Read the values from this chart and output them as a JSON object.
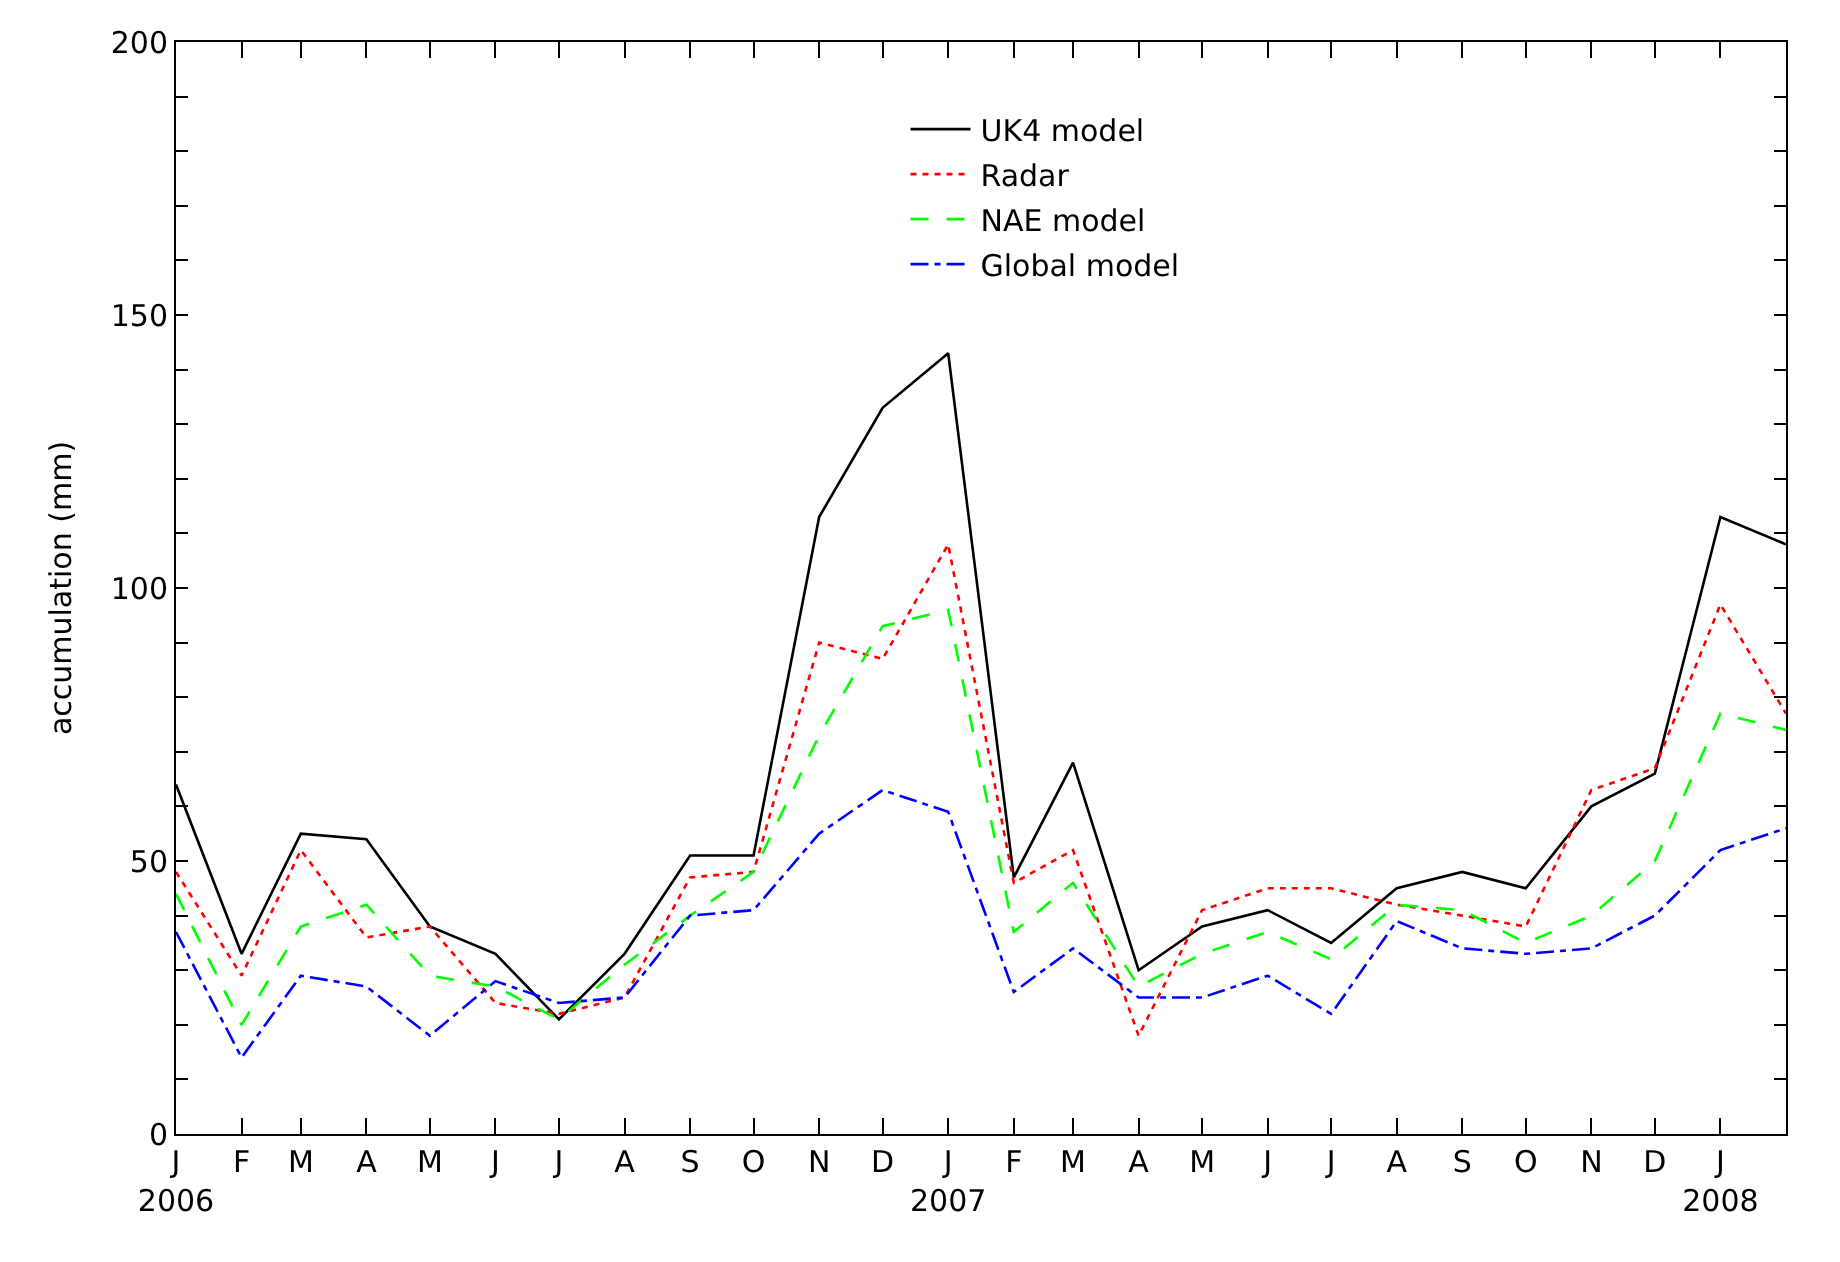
{
  "chart_data": {
    "type": "line",
    "ylabel": "accumulation (mm)",
    "x": [
      "2006-01",
      "2006-02",
      "2006-03",
      "2006-04",
      "2006-05",
      "2006-06",
      "2006-07",
      "2006-08",
      "2006-09",
      "2006-10",
      "2006-11",
      "2006-12",
      "2007-01",
      "2007-02",
      "2007-03",
      "2007-04",
      "2007-05",
      "2007-06",
      "2007-07",
      "2007-08",
      "2007-09",
      "2007-10",
      "2007-11",
      "2007-12",
      "2008-01",
      "2008-02"
    ],
    "series": [
      {
        "name": "UK4 model",
        "color": "#000000",
        "line_style": "solid",
        "values": [
          64,
          33,
          55,
          54,
          38,
          33,
          21,
          33,
          51,
          51,
          113,
          133,
          143,
          47,
          68,
          30,
          38,
          41,
          35,
          45,
          48,
          45,
          60,
          66,
          113,
          108
        ]
      },
      {
        "name": "Radar",
        "color": "#ff0000",
        "line_style": "dotted",
        "values": [
          48,
          29,
          52,
          36,
          38,
          24,
          22,
          25,
          47,
          48,
          90,
          87,
          108,
          46,
          52,
          18,
          41,
          45,
          45,
          42,
          40,
          38,
          63,
          67,
          97,
          77
        ]
      },
      {
        "name": "NAE model",
        "color": "#00ff00",
        "line_style": "dashed",
        "values": [
          44,
          20,
          38,
          42,
          29,
          27,
          21,
          31,
          40,
          48,
          73,
          93,
          96,
          37,
          46,
          27,
          33,
          37,
          32,
          42,
          41,
          35,
          40,
          50,
          77,
          74
        ]
      },
      {
        "name": "Global model",
        "color": "#0000ff",
        "line_style": "dashdot",
        "values": [
          37,
          14,
          29,
          27,
          18,
          28,
          24,
          25,
          40,
          41,
          55,
          63,
          59,
          26,
          34,
          25,
          25,
          29,
          22,
          39,
          34,
          33,
          34,
          40,
          52,
          56
        ]
      }
    ],
    "xlim": [
      "2006-01",
      "2008-02"
    ],
    "xticks": [
      {
        "value": "2006-01",
        "label": "J\n2006"
      },
      {
        "value": "2006-02",
        "label": "F"
      },
      {
        "value": "2006-03",
        "label": "M"
      },
      {
        "value": "2006-04",
        "label": "A"
      },
      {
        "value": "2006-05",
        "label": "M"
      },
      {
        "value": "2006-06",
        "label": "J"
      },
      {
        "value": "2006-07",
        "label": "J"
      },
      {
        "value": "2006-08",
        "label": "A"
      },
      {
        "value": "2006-09",
        "label": "S"
      },
      {
        "value": "2006-10",
        "label": "O"
      },
      {
        "value": "2006-11",
        "label": "N"
      },
      {
        "value": "2006-12",
        "label": "D"
      },
      {
        "value": "2007-01",
        "label": "J\n2007"
      },
      {
        "value": "2007-02",
        "label": "F"
      },
      {
        "value": "2007-03",
        "label": "M"
      },
      {
        "value": "2007-04",
        "label": "A"
      },
      {
        "value": "2007-05",
        "label": "M"
      },
      {
        "value": "2007-06",
        "label": "J"
      },
      {
        "value": "2007-07",
        "label": "J"
      },
      {
        "value": "2007-08",
        "label": "A"
      },
      {
        "value": "2007-09",
        "label": "S"
      },
      {
        "value": "2007-10",
        "label": "O"
      },
      {
        "value": "2007-11",
        "label": "N"
      },
      {
        "value": "2007-12",
        "label": "D"
      },
      {
        "value": "2008-01",
        "label": "J\n2008"
      }
    ],
    "ylim": [
      0,
      200
    ],
    "yticks": [
      0,
      {
        "value": 10,
        "label": null
      },
      {
        "value": 20,
        "label": null
      },
      {
        "value": 30,
        "label": null
      },
      {
        "value": 40,
        "label": null
      },
      50,
      {
        "value": 60,
        "label": null
      },
      {
        "value": 70,
        "label": null
      },
      {
        "value": 80,
        "label": null
      },
      {
        "value": 90,
        "label": null
      },
      100,
      {
        "value": 110,
        "label": null
      },
      {
        "value": 120,
        "label": null
      },
      {
        "value": 130,
        "label": null
      },
      {
        "value": 140,
        "label": null
      },
      150,
      {
        "value": 160,
        "label": null
      },
      {
        "value": 170,
        "label": null
      },
      {
        "value": 180,
        "label": null
      },
      {
        "value": 190,
        "label": null
      },
      200
    ],
    "legend": "top right",
    "marker": "none"
  }
}
